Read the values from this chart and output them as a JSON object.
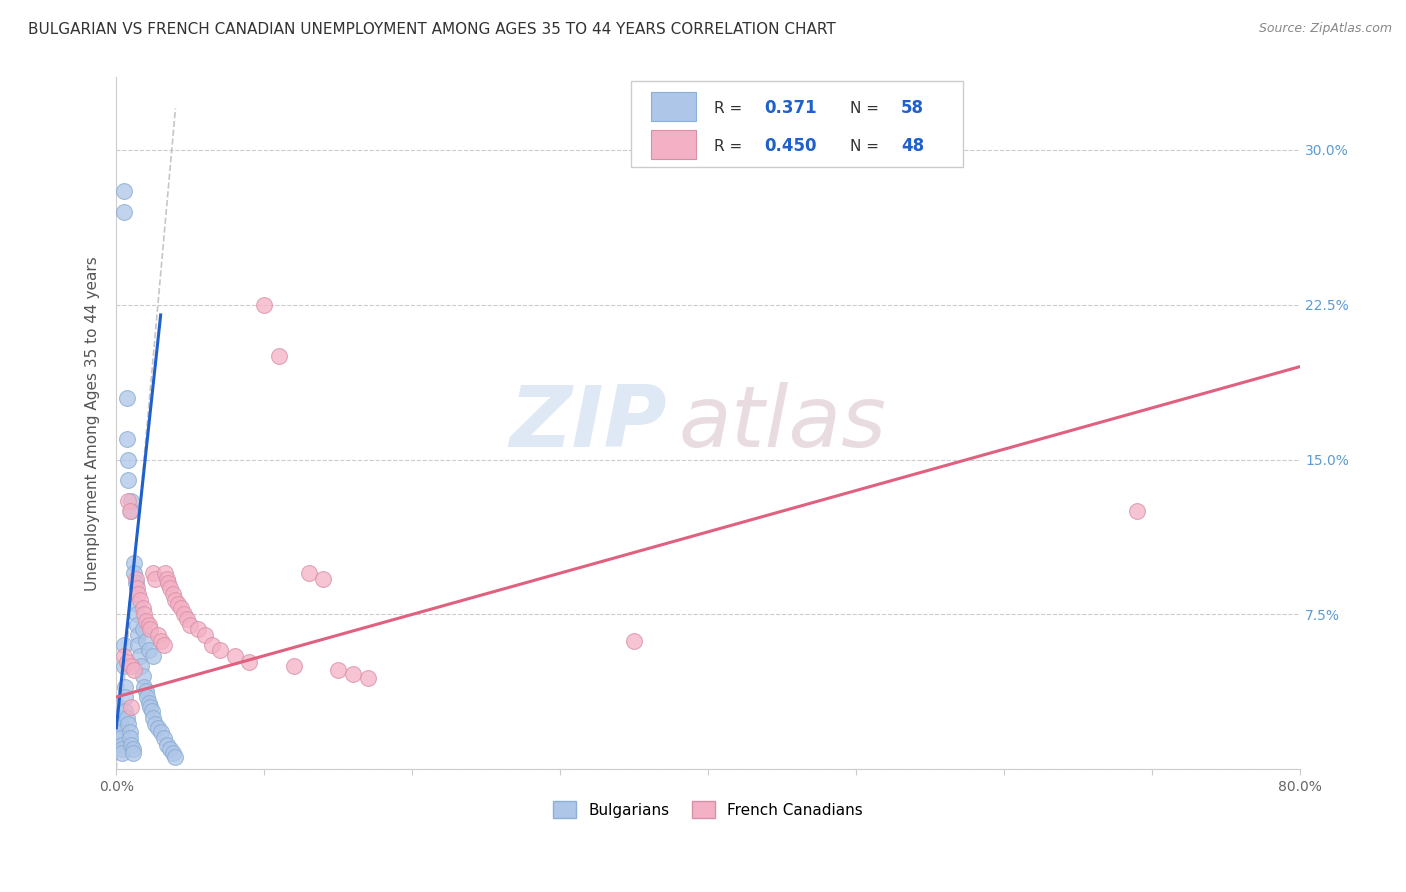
{
  "title": "BULGARIAN VS FRENCH CANADIAN UNEMPLOYMENT AMONG AGES 35 TO 44 YEARS CORRELATION CHART",
  "source": "Source: ZipAtlas.com",
  "ylabel": "Unemployment Among Ages 35 to 44 years",
  "xlim": [
    0.0,
    0.8
  ],
  "ylim": [
    0.0,
    0.335
  ],
  "xticks": [
    0.0,
    0.1,
    0.2,
    0.3,
    0.4,
    0.5,
    0.6,
    0.7,
    0.8
  ],
  "xticklabels_show": [
    "0.0%",
    "",
    "",
    "",
    "",
    "",
    "",
    "",
    "80.0%"
  ],
  "yticks": [
    0.0,
    0.075,
    0.15,
    0.225,
    0.3
  ],
  "right_yticklabels": [
    "",
    "7.5%",
    "15.0%",
    "22.5%",
    "30.0%"
  ],
  "blue_r": "0.371",
  "blue_n": "58",
  "pink_r": "0.450",
  "pink_n": "48",
  "blue_scatter_x": [
    0.002,
    0.002,
    0.003,
    0.003,
    0.003,
    0.004,
    0.004,
    0.004,
    0.005,
    0.005,
    0.005,
    0.005,
    0.006,
    0.006,
    0.006,
    0.007,
    0.007,
    0.007,
    0.008,
    0.008,
    0.008,
    0.009,
    0.009,
    0.01,
    0.01,
    0.01,
    0.011,
    0.011,
    0.012,
    0.012,
    0.013,
    0.013,
    0.014,
    0.014,
    0.015,
    0.015,
    0.016,
    0.017,
    0.018,
    0.019,
    0.02,
    0.021,
    0.022,
    0.023,
    0.024,
    0.025,
    0.026,
    0.028,
    0.03,
    0.032,
    0.034,
    0.036,
    0.038,
    0.04,
    0.018,
    0.02,
    0.022,
    0.025
  ],
  "blue_scatter_y": [
    0.03,
    0.025,
    0.022,
    0.018,
    0.015,
    0.012,
    0.01,
    0.008,
    0.28,
    0.27,
    0.06,
    0.05,
    0.04,
    0.035,
    0.028,
    0.18,
    0.16,
    0.025,
    0.15,
    0.14,
    0.022,
    0.018,
    0.015,
    0.13,
    0.125,
    0.012,
    0.01,
    0.008,
    0.1,
    0.095,
    0.09,
    0.08,
    0.075,
    0.07,
    0.065,
    0.06,
    0.055,
    0.05,
    0.045,
    0.04,
    0.038,
    0.035,
    0.032,
    0.03,
    0.028,
    0.025,
    0.022,
    0.02,
    0.018,
    0.015,
    0.012,
    0.01,
    0.008,
    0.006,
    0.068,
    0.062,
    0.058,
    0.055
  ],
  "pink_scatter_x": [
    0.005,
    0.007,
    0.008,
    0.009,
    0.01,
    0.012,
    0.013,
    0.014,
    0.015,
    0.016,
    0.018,
    0.019,
    0.02,
    0.022,
    0.023,
    0.025,
    0.026,
    0.028,
    0.03,
    0.032,
    0.033,
    0.034,
    0.035,
    0.036,
    0.038,
    0.04,
    0.042,
    0.044,
    0.046,
    0.048,
    0.05,
    0.055,
    0.06,
    0.065,
    0.07,
    0.08,
    0.09,
    0.1,
    0.11,
    0.12,
    0.13,
    0.14,
    0.15,
    0.16,
    0.17,
    0.35,
    0.69,
    0.01
  ],
  "pink_scatter_y": [
    0.055,
    0.052,
    0.13,
    0.125,
    0.05,
    0.048,
    0.092,
    0.088,
    0.085,
    0.082,
    0.078,
    0.075,
    0.072,
    0.07,
    0.068,
    0.095,
    0.092,
    0.065,
    0.062,
    0.06,
    0.095,
    0.092,
    0.09,
    0.088,
    0.085,
    0.082,
    0.08,
    0.078,
    0.075,
    0.073,
    0.07,
    0.068,
    0.065,
    0.06,
    0.058,
    0.055,
    0.052,
    0.225,
    0.2,
    0.05,
    0.095,
    0.092,
    0.048,
    0.046,
    0.044,
    0.062,
    0.125,
    0.03
  ],
  "blue_line_x": [
    0.0,
    0.03
  ],
  "blue_line_y": [
    0.02,
    0.22
  ],
  "pink_line_x": [
    0.0,
    0.8
  ],
  "pink_line_y": [
    0.035,
    0.195
  ],
  "diag_line_x": [
    0.0,
    0.04
  ],
  "diag_line_y": [
    0.0,
    0.32
  ],
  "scatter_color_blue": "#aec6e8",
  "scatter_edge_blue": "#88aad0",
  "scatter_color_pink": "#f4b0c4",
  "scatter_edge_pink": "#d890a8",
  "line_color_blue": "#2060cc",
  "line_color_pink": "#e06080",
  "diag_color": "#b8b8b8",
  "tick_color_right": "#5b9bd5",
  "legend_color_blue": "#aec6e8",
  "legend_color_pink": "#f4b0c4",
  "watermark_text": "ZIPatlas",
  "watermark_zip_color": "#c5d8ee",
  "watermark_atlas_color": "#d8c0c8"
}
